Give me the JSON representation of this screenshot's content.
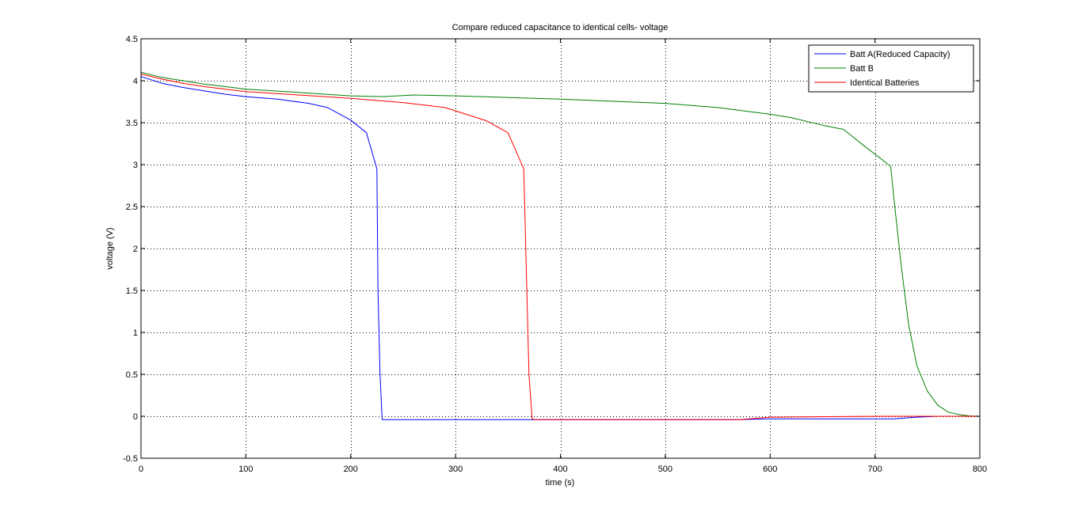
{
  "chart_data": {
    "type": "line",
    "title": "Compare reduced capacitance to identical cells- voltage",
    "xlabel": "time (s)",
    "ylabel": "voltage (V)",
    "xlim": [
      0,
      800
    ],
    "ylim": [
      -0.5,
      4.5
    ],
    "xticks": [
      0,
      100,
      200,
      300,
      400,
      500,
      600,
      700,
      800
    ],
    "yticks": [
      -0.5,
      0,
      0.5,
      1,
      1.5,
      2,
      2.5,
      3,
      3.5,
      4,
      4.5
    ],
    "xtick_labels": [
      "0",
      "100",
      "200",
      "300",
      "400",
      "500",
      "600",
      "700",
      "800"
    ],
    "ytick_labels": [
      "-0.5",
      "0",
      "0.5",
      "1",
      "1.5",
      "2",
      "2.5",
      "3",
      "3.5",
      "4",
      "4.5"
    ],
    "grid": true,
    "legend_position": "top-right",
    "series": [
      {
        "name": "Batt A(Reduced Capacity)",
        "color": "#0000ff",
        "x": [
          0,
          20,
          40,
          60,
          80,
          100,
          130,
          160,
          178,
          200,
          215,
          225,
          226,
          228,
          230,
          300,
          400,
          500,
          570,
          600,
          700,
          718,
          740,
          760,
          800
        ],
        "y": [
          4.05,
          3.97,
          3.92,
          3.88,
          3.84,
          3.81,
          3.78,
          3.73,
          3.68,
          3.53,
          3.38,
          2.95,
          1.5,
          0.5,
          -0.04,
          -0.04,
          -0.04,
          -0.04,
          -0.04,
          -0.03,
          -0.03,
          -0.03,
          -0.01,
          0,
          0
        ]
      },
      {
        "name": "Batt B",
        "color": "#008000",
        "x": [
          0,
          20,
          40,
          60,
          80,
          100,
          150,
          200,
          230,
          260,
          300,
          400,
          500,
          550,
          600,
          620,
          650,
          670,
          690,
          715,
          718,
          725,
          732,
          740,
          750,
          760,
          770,
          780,
          790,
          800
        ],
        "y": [
          4.1,
          4.04,
          4.0,
          3.96,
          3.93,
          3.9,
          3.86,
          3.82,
          3.81,
          3.83,
          3.82,
          3.78,
          3.73,
          3.68,
          3.6,
          3.56,
          3.47,
          3.42,
          3.22,
          2.98,
          2.6,
          1.8,
          1.1,
          0.6,
          0.3,
          0.13,
          0.05,
          0.02,
          0.005,
          0
        ]
      },
      {
        "name": "Identical Batteries",
        "color": "#ff0000",
        "x": [
          0,
          20,
          40,
          60,
          80,
          100,
          150,
          200,
          250,
          290,
          310,
          330,
          350,
          365,
          368,
          370,
          373,
          375,
          400,
          500,
          570,
          600,
          700,
          800
        ],
        "y": [
          4.08,
          4.02,
          3.97,
          3.93,
          3.9,
          3.87,
          3.83,
          3.79,
          3.74,
          3.68,
          3.6,
          3.52,
          3.38,
          2.95,
          1.5,
          0.5,
          -0.03,
          -0.04,
          -0.04,
          -0.04,
          -0.04,
          -0.01,
          0,
          0
        ]
      }
    ]
  }
}
